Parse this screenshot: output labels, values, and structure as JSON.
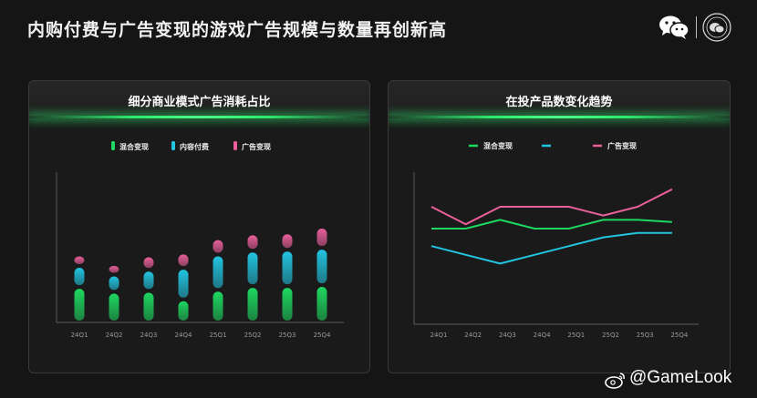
{
  "title": "内购付费与广告变现的游戏广告规模与数量再创新高",
  "watermark": "@GameLook",
  "colors": {
    "hybrid": "#1ed760",
    "iap": "#22c4e0",
    "ad": "#e85f9a",
    "glow": "#2ee86e"
  },
  "chart_data": [
    {
      "type": "bar",
      "title": "细分商业模式广告消耗占比",
      "categories": [
        "24Q1",
        "24Q2",
        "24Q3",
        "24Q4",
        "25Q1",
        "25Q2",
        "25Q3",
        "25Q4"
      ],
      "series": [
        {
          "name": "混合变现",
          "values": [
            37,
            32,
            33,
            24,
            34,
            38,
            38,
            39
          ]
        },
        {
          "name": "内容付费",
          "values": [
            22,
            18,
            22,
            33,
            37,
            37,
            38,
            39
          ]
        },
        {
          "name": "广告变现",
          "values": [
            12,
            11,
            15,
            16,
            17,
            18,
            18,
            22
          ]
        }
      ],
      "stacked": true,
      "legend_position": "top",
      "grid": false
    },
    {
      "type": "line",
      "title": "在投产品数变化趋势",
      "x": [
        "24Q1",
        "24Q2",
        "24Q3",
        "24Q4",
        "25Q1",
        "25Q2",
        "25Q3",
        "25Q4"
      ],
      "series": [
        {
          "name": "混合变现",
          "values": [
            55,
            55,
            57,
            55,
            55,
            57,
            57,
            56.5
          ]
        },
        {
          "name": "",
          "values": [
            51,
            49,
            47,
            49,
            51,
            53,
            54,
            54
          ]
        },
        {
          "name": "广告变现",
          "values": [
            60,
            56,
            60,
            60,
            60,
            58,
            60,
            64
          ]
        }
      ],
      "legend_position": "top",
      "grid": false
    }
  ]
}
